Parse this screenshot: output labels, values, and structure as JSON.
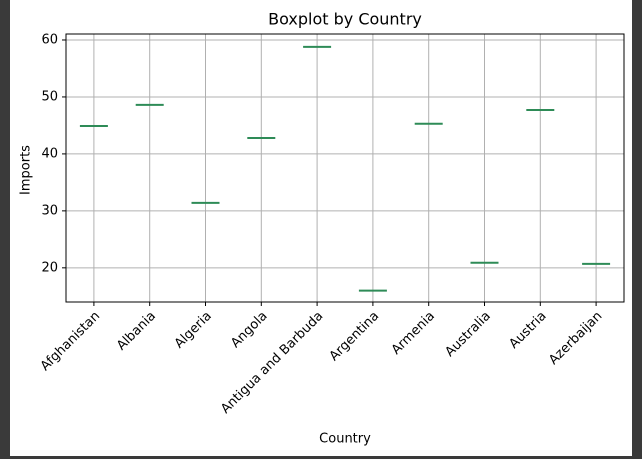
{
  "chart_data": {
    "type": "box",
    "title": "Boxplot by Country",
    "x_label": "Country",
    "y_label": "Imports",
    "categories": [
      "Afghanistan",
      "Albania",
      "Algeria",
      "Angola",
      "Antigua and Barbuda",
      "Argentina",
      "Armenia",
      "Australia",
      "Austria",
      "Azerbaijan"
    ],
    "values": [
      44.9,
      48.6,
      31.4,
      42.8,
      58.8,
      16.0,
      45.3,
      20.9,
      47.7,
      20.7
    ],
    "color": "#2e8b57",
    "ylim": [
      14.0,
      61.05
    ],
    "yticks": [
      20,
      30,
      40,
      50,
      60
    ],
    "grid": true
  }
}
